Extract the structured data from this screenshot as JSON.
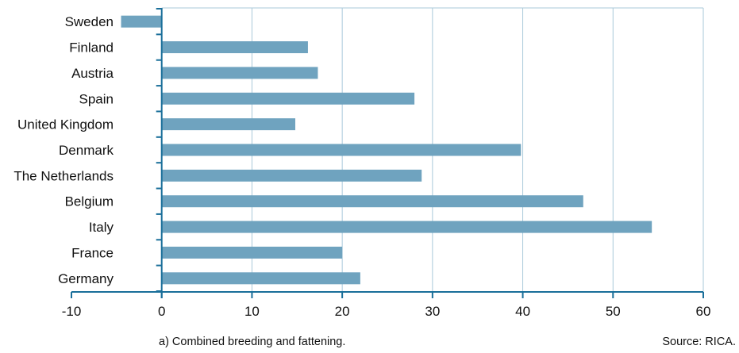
{
  "chart_data": {
    "type": "bar",
    "orientation": "horizontal",
    "categories": [
      "Sweden",
      "Finland",
      "Austria",
      "Spain",
      "United Kingdom",
      "Denmark",
      "The Netherlands",
      "Belgium",
      "Italy",
      "France",
      "Germany"
    ],
    "values": [
      -4.5,
      16.2,
      17.3,
      28,
      14.8,
      39.8,
      28.8,
      46.7,
      54.3,
      20,
      22
    ],
    "xlim": [
      -10,
      60
    ],
    "xticks": [
      -10,
      0,
      10,
      20,
      30,
      40,
      50,
      60
    ],
    "grid": true,
    "bar_color": "#6fa3bf",
    "axis_color": "#1a6f9a",
    "grid_color": "#a9c9da"
  },
  "footnote": "a) Combined breeding and fattening.",
  "source": "Source: RICA."
}
